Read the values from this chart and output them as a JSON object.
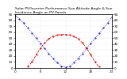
{
  "title": "Solar PV/Inverter Performance Sun Altitude Angle & Sun Incidence Angle on PV Panels",
  "ylim": [
    0,
    90
  ],
  "xlim": [
    0,
    23
  ],
  "y_ticks": [
    0,
    10,
    20,
    30,
    40,
    50,
    60,
    70,
    80,
    90
  ],
  "x_ticks": [
    0,
    6,
    12,
    18,
    23
  ],
  "x_tick_labels": [
    "0",
    "6",
    "12",
    "18",
    "23"
  ],
  "blue_x": [
    0,
    1,
    2,
    3,
    4,
    5,
    6,
    7,
    8,
    9,
    10,
    11,
    12,
    13,
    14,
    15,
    16,
    17,
    18,
    19,
    20,
    21,
    22,
    23
  ],
  "blue_y": [
    88,
    82,
    75,
    67,
    58,
    50,
    41,
    33,
    24,
    16,
    9,
    3,
    1,
    3,
    9,
    16,
    24,
    33,
    41,
    50,
    58,
    67,
    75,
    85
  ],
  "red_x": [
    3,
    4,
    5,
    6,
    7,
    8,
    9,
    10,
    11,
    12,
    13,
    14,
    15,
    16,
    17,
    18,
    19,
    20
  ],
  "red_y": [
    2,
    10,
    22,
    33,
    42,
    49,
    53,
    55,
    56,
    56,
    55,
    53,
    49,
    42,
    33,
    22,
    10,
    2
  ],
  "blue_color": "#0000dd",
  "red_color": "#dd0000",
  "background_color": "#ffffff",
  "grid_color": "#aaaaaa",
  "title_fontsize": 3.2,
  "tick_fontsize": 3.0,
  "linewidth": 0.6,
  "markersize": 1.0,
  "right_y_ticks": [
    0,
    10,
    20,
    30,
    40,
    50,
    60,
    70,
    80,
    90
  ]
}
